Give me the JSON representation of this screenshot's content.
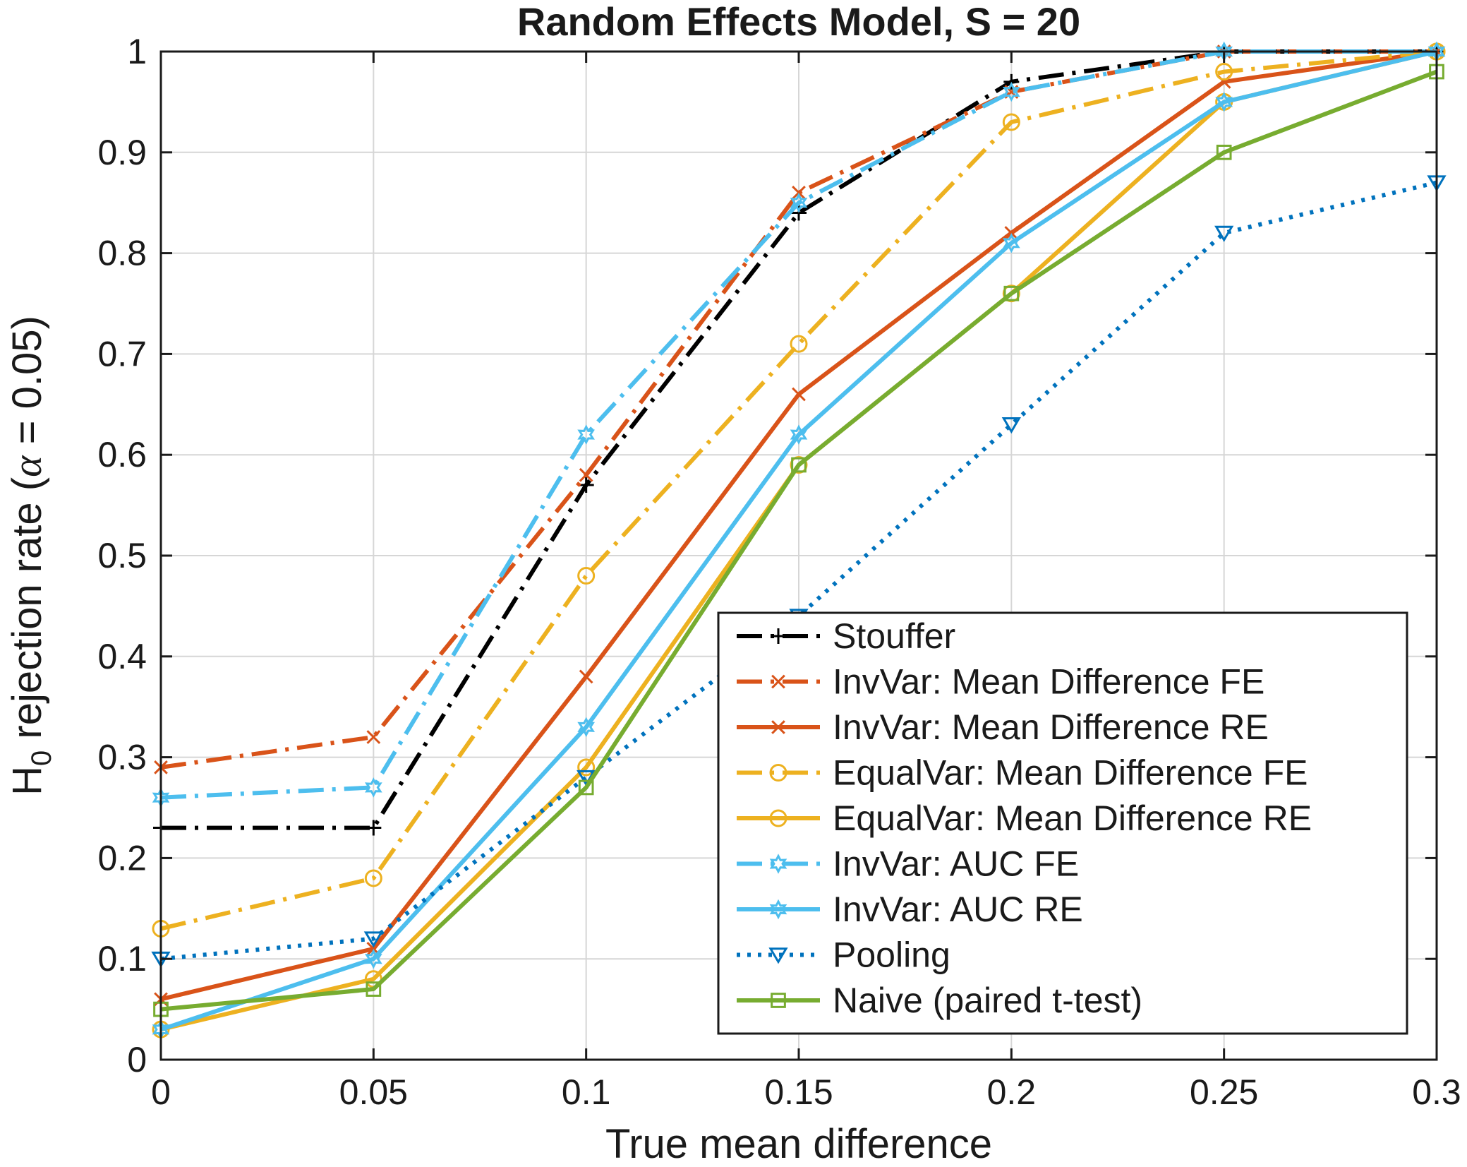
{
  "chart_data": {
    "type": "line",
    "title": "Random Effects Model, S = 20",
    "xlabel": "True mean difference",
    "ylabel": {
      "prefix": "H",
      "subscript": "0",
      "middle": " rejection rate (",
      "symbol": "α",
      "suffix": " = 0.05)"
    },
    "x": [
      0,
      0.05,
      0.1,
      0.15,
      0.2,
      0.25,
      0.3
    ],
    "xlim": [
      0,
      0.3
    ],
    "ylim": [
      0,
      1
    ],
    "xticks": [
      "0",
      "0.05",
      "0.1",
      "0.15",
      "0.2",
      "0.25",
      "0.3"
    ],
    "yticks": [
      "0",
      "0.1",
      "0.2",
      "0.3",
      "0.4",
      "0.5",
      "0.6",
      "0.7",
      "0.8",
      "0.9",
      "1"
    ],
    "grid": true,
    "legend_position": "bottom-right",
    "series": [
      {
        "name": "Stouffer",
        "color": "#000000",
        "dash": "dashdot",
        "marker": "plus",
        "values": [
          0.23,
          0.23,
          0.57,
          0.84,
          0.97,
          1.0,
          1.0
        ]
      },
      {
        "name": "InvVar: Mean Difference FE",
        "color": "#D95319",
        "dash": "dashdot",
        "marker": "x",
        "values": [
          0.29,
          0.32,
          0.58,
          0.86,
          0.96,
          1.0,
          1.0
        ]
      },
      {
        "name": "InvVar: Mean Difference RE",
        "color": "#D95319",
        "dash": "solid",
        "marker": "x",
        "values": [
          0.06,
          0.11,
          0.38,
          0.66,
          0.82,
          0.97,
          1.0
        ]
      },
      {
        "name": "EqualVar: Mean Difference FE",
        "color": "#EDB120",
        "dash": "dashdot",
        "marker": "circle",
        "values": [
          0.13,
          0.18,
          0.48,
          0.71,
          0.93,
          0.98,
          1.0
        ]
      },
      {
        "name": "EqualVar: Mean Difference RE",
        "color": "#EDB120",
        "dash": "solid",
        "marker": "circle",
        "values": [
          0.03,
          0.08,
          0.29,
          0.59,
          0.76,
          0.95,
          1.0
        ]
      },
      {
        "name": "InvVar: AUC FE",
        "color": "#4DBEEE",
        "dash": "dashdot",
        "marker": "hexagram",
        "values": [
          0.26,
          0.27,
          0.62,
          0.85,
          0.96,
          1.0,
          1.0
        ]
      },
      {
        "name": "InvVar: AUC RE",
        "color": "#4DBEEE",
        "dash": "solid",
        "marker": "hexagram",
        "values": [
          0.03,
          0.1,
          0.33,
          0.62,
          0.81,
          0.95,
          1.0
        ]
      },
      {
        "name": "Pooling",
        "color": "#0072BD",
        "dash": "dotted",
        "marker": "triangle-down",
        "values": [
          0.1,
          0.12,
          0.28,
          0.44,
          0.63,
          0.82,
          0.87
        ]
      },
      {
        "name": "Naive (paired t-test)",
        "color": "#77AC30",
        "dash": "solid",
        "marker": "square",
        "values": [
          0.05,
          0.07,
          0.27,
          0.59,
          0.76,
          0.9,
          0.98
        ]
      }
    ]
  }
}
